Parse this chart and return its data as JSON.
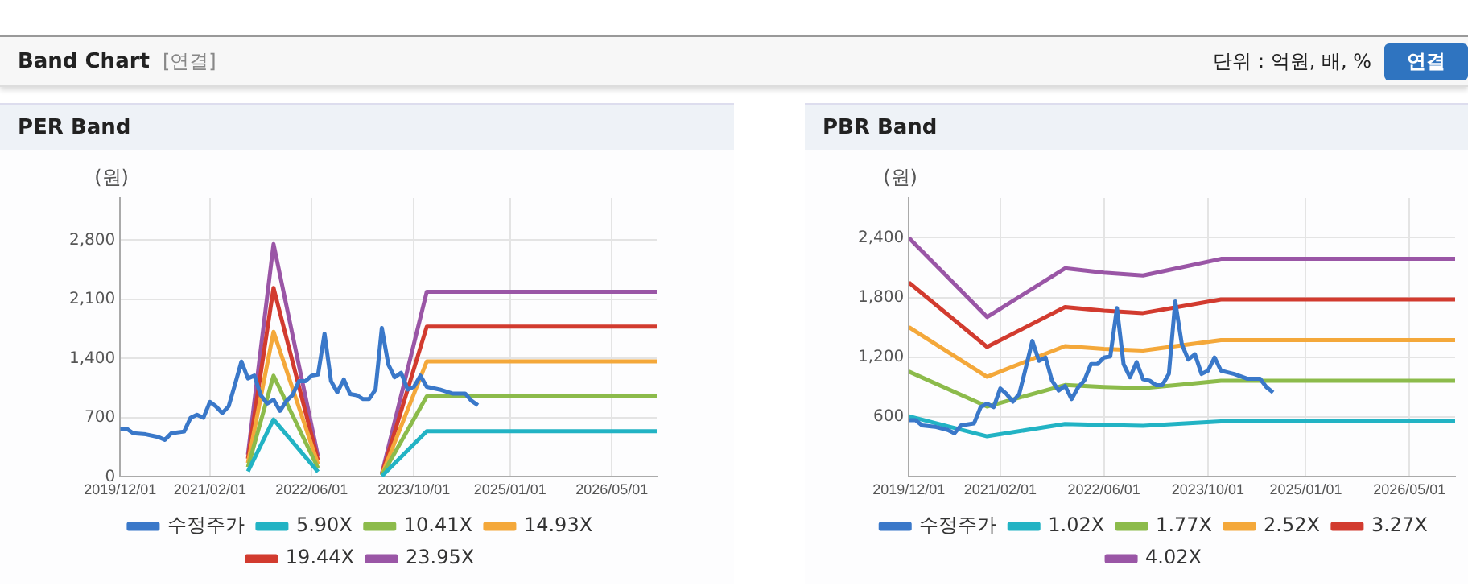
{
  "chart_data": [
    {
      "type": "other",
      "title": "Band Chart",
      "annotations": [
        "[연결]",
        "단위 : 억원, 배, %",
        "연결"
      ]
    },
    {
      "type": "line",
      "title": "PER Band",
      "ylabel": "(원)",
      "xlim": [
        "2019-12-01",
        "2026-12-01"
      ],
      "ylim": [
        0,
        3300
      ],
      "xticks": [
        {
          "value": "2019-12-01",
          "label": "2019/12/01"
        },
        {
          "value": "2021-02-01",
          "label": "2021/02/01"
        },
        {
          "value": "2022-06-01",
          "label": "2022/06/01"
        },
        {
          "value": "2023-10-01",
          "label": "2023/10/01"
        },
        {
          "value": "2025-01-01",
          "label": "2025/01/01"
        },
        {
          "value": "2026-05-01",
          "label": "2026/05/01"
        }
      ],
      "yticks": [
        0,
        {
          "value": 700,
          "label": "700"
        },
        {
          "value": 1400,
          "label": "1,400"
        },
        {
          "value": 2100,
          "label": "2,100"
        },
        {
          "value": 2800,
          "label": "2,800"
        }
      ],
      "grid": true,
      "legend": "bottom",
      "marker": "none",
      "series": [
        {
          "name": "수정주가",
          "color": "#3a78c9",
          "x": [
            "2019-12",
            "2020-01",
            "2020-02",
            "2020-04",
            "2020-06",
            "2020-07",
            "2020-08",
            "2020-10",
            "2020-11",
            "2020-12",
            "2021-01",
            "2021-02",
            "2021-03",
            "2021-04",
            "2021-05",
            "2021-06",
            "2021-07",
            "2021-08",
            "2021-09",
            "2021-10",
            "2021-11",
            "2021-12",
            "2022-01",
            "2022-02",
            "2022-03",
            "2022-04",
            "2022-05",
            "2022-06",
            "2022-07",
            "2022-08",
            "2022-09",
            "2022-10",
            "2022-11",
            "2022-12",
            "2023-01",
            "2023-02",
            "2023-03",
            "2023-04",
            "2023-05",
            "2023-06",
            "2023-07",
            "2023-08",
            "2023-09",
            "2023-10",
            "2023-11",
            "2023-12",
            "2024-02",
            "2024-04",
            "2024-06",
            "2024-07",
            "2024-08"
          ],
          "values": [
            570,
            570,
            516,
            503,
            470,
            437,
            516,
            536,
            700,
            735,
            700,
            887,
            834,
            755,
            834,
            1100,
            1364,
            1165,
            1198,
            966,
            867,
            913,
            781,
            900,
            966,
            1132,
            1132,
            1198,
            1210,
            1695,
            1132,
            1000,
            1152,
            980,
            966,
            920,
            920,
            1033,
            1761,
            1330,
            1178,
            1231,
            1033,
            1066,
            1198,
            1066,
            1033,
            986,
            986,
            900,
            847
          ]
        },
        {
          "name": "5.90X",
          "color": "#22b3c4",
          "x": [
            "2021-08",
            "2021-12",
            "2022-07",
            "2023-01",
            "2023-05",
            "2023-12",
            "2026-12"
          ],
          "values": [
            65,
            679,
            59,
            null,
            9,
            539,
            539
          ]
        },
        {
          "name": "10.41X",
          "color": "#8cbb4b",
          "x": [
            "2021-08",
            "2021-12",
            "2022-07",
            "2023-01",
            "2023-05",
            "2023-12",
            "2026-12"
          ],
          "values": [
            115,
            1197,
            104,
            null,
            16,
            951,
            951
          ]
        },
        {
          "name": "14.93X",
          "color": "#f4a83a",
          "x": [
            "2021-08",
            "2021-12",
            "2022-07",
            "2023-01",
            "2023-05",
            "2023-12",
            "2026-12"
          ],
          "values": [
            164,
            1717,
            149,
            null,
            22,
            1365,
            1365
          ]
        },
        {
          "name": "19.44X",
          "color": "#d23b2f",
          "x": [
            "2021-08",
            "2021-12",
            "2022-07",
            "2023-01",
            "2023-05",
            "2023-12",
            "2026-12"
          ],
          "values": [
            214,
            2236,
            194,
            null,
            29,
            1777,
            1777
          ]
        },
        {
          "name": "23.95X",
          "color": "#9a56a6",
          "x": [
            "2021-08",
            "2021-12",
            "2022-07",
            "2023-01",
            "2023-05",
            "2023-12",
            "2026-12"
          ],
          "values": [
            263,
            2754,
            240,
            null,
            36,
            2189,
            2189
          ]
        }
      ]
    },
    {
      "type": "line",
      "title": "PBR Band",
      "ylabel": "(원)",
      "xlim": [
        "2019-12-01",
        "2026-12-01"
      ],
      "ylim": [
        0,
        2800
      ],
      "xticks": [
        {
          "value": "2019-12-01",
          "label": "2019/12/01"
        },
        {
          "value": "2021-02-01",
          "label": "2021/02/01"
        },
        {
          "value": "2022-06-01",
          "label": "2022/06/01"
        },
        {
          "value": "2023-10-01",
          "label": "2023/10/01"
        },
        {
          "value": "2025-01-01",
          "label": "2025/01/01"
        },
        {
          "value": "2026-05-01",
          "label": "2026/05/01"
        }
      ],
      "yticks": [
        {
          "value": 600,
          "label": "600"
        },
        {
          "value": 1200,
          "label": "1,200"
        },
        {
          "value": 1800,
          "label": "1,800"
        },
        {
          "value": 2400,
          "label": "2,400"
        }
      ],
      "grid": true,
      "legend": "bottom",
      "marker": "none",
      "series": [
        {
          "name": "수정주가",
          "color": "#3a78c9",
          "x": [
            "2019-12",
            "2020-01",
            "2020-02",
            "2020-04",
            "2020-06",
            "2020-07",
            "2020-08",
            "2020-10",
            "2020-11",
            "2020-12",
            "2021-01",
            "2021-02",
            "2021-03",
            "2021-04",
            "2021-05",
            "2021-06",
            "2021-07",
            "2021-08",
            "2021-09",
            "2021-10",
            "2021-11",
            "2021-12",
            "2022-01",
            "2022-02",
            "2022-03",
            "2022-04",
            "2022-05",
            "2022-06",
            "2022-07",
            "2022-08",
            "2022-09",
            "2022-10",
            "2022-11",
            "2022-12",
            "2023-01",
            "2023-02",
            "2023-03",
            "2023-04",
            "2023-05",
            "2023-06",
            "2023-07",
            "2023-08",
            "2023-09",
            "2023-10",
            "2023-11",
            "2023-12",
            "2024-02",
            "2024-04",
            "2024-06",
            "2024-07",
            "2024-08"
          ],
          "values": [
            570,
            570,
            516,
            503,
            470,
            437,
            516,
            536,
            700,
            735,
            700,
            887,
            834,
            755,
            834,
            1100,
            1364,
            1165,
            1198,
            966,
            867,
            913,
            781,
            900,
            966,
            1132,
            1132,
            1198,
            1210,
            1695,
            1132,
            1000,
            1152,
            980,
            966,
            920,
            920,
            1033,
            1761,
            1330,
            1178,
            1231,
            1033,
            1066,
            1198,
            1066,
            1033,
            986,
            986,
            900,
            847
          ]
        },
        {
          "name": "1.02X",
          "color": "#22b3c4",
          "x": [
            "2019-12",
            "2020-12",
            "2021-12",
            "2022-06",
            "2022-12",
            "2023-06",
            "2023-12",
            "2026-12"
          ],
          "values": [
            609,
            407,
            531,
            520,
            513,
            534,
            556,
            556
          ]
        },
        {
          "name": "1.77X",
          "color": "#8cbb4b",
          "x": [
            "2019-12",
            "2020-12",
            "2021-12",
            "2022-06",
            "2022-12",
            "2023-06",
            "2023-12",
            "2026-12"
          ],
          "values": [
            1057,
            706,
            922,
            903,
            890,
            927,
            965,
            965
          ]
        },
        {
          "name": "2.52X",
          "color": "#f4a83a",
          "x": [
            "2019-12",
            "2020-12",
            "2021-12",
            "2022-06",
            "2022-12",
            "2023-06",
            "2023-12",
            "2026-12"
          ],
          "values": [
            1504,
            1005,
            1313,
            1285,
            1268,
            1320,
            1373,
            1373
          ]
        },
        {
          "name": "3.27X",
          "color": "#d23b2f",
          "x": [
            "2019-12",
            "2020-12",
            "2021-12",
            "2022-06",
            "2022-12",
            "2023-06",
            "2023-12",
            "2026-12"
          ],
          "values": [
            1952,
            1305,
            1704,
            1668,
            1645,
            1713,
            1782,
            1782
          ]
        },
        {
          "name": "4.02X",
          "color": "#9a56a6",
          "x": [
            "2019-12",
            "2020-12",
            "2021-12",
            "2022-06",
            "2022-12",
            "2023-06",
            "2023-12",
            "2026-12"
          ],
          "values": [
            2400,
            1605,
            2094,
            2050,
            2022,
            2105,
            2189,
            2189
          ]
        }
      ]
    }
  ]
}
